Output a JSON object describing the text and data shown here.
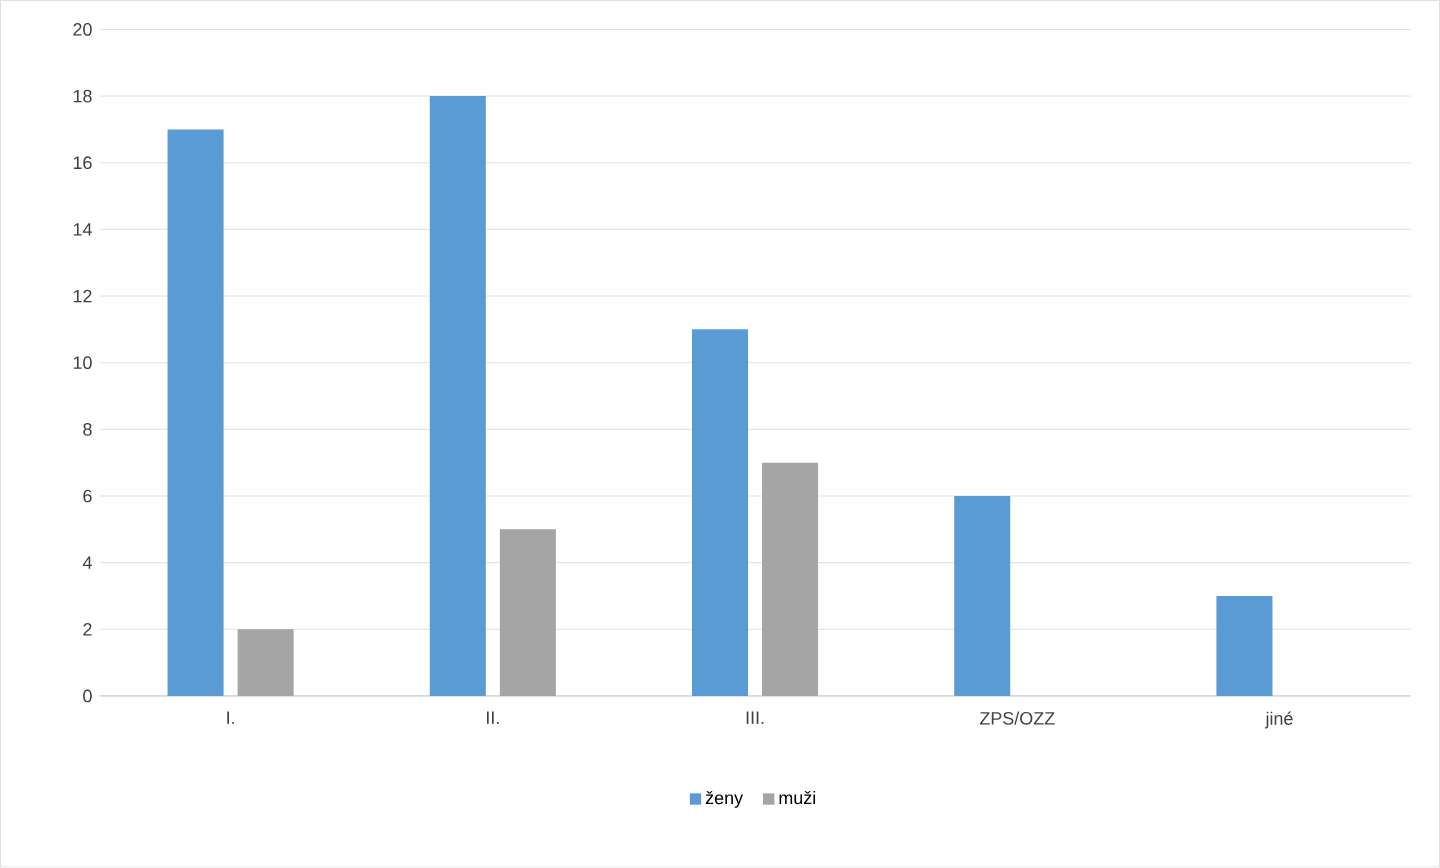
{
  "chart_data": {
    "type": "bar",
    "categories": [
      "I.",
      "II.",
      "III.",
      "ZPS/OZZ",
      "jiné"
    ],
    "series": [
      {
        "name": "ženy",
        "color": "#5b9bd5",
        "values": [
          17,
          18,
          11,
          6,
          3
        ]
      },
      {
        "name": "muži",
        "color": "#a5a5a5",
        "values": [
          2,
          5,
          7,
          0,
          0
        ]
      }
    ],
    "ylim": [
      0,
      20
    ],
    "yticks": [
      0,
      2,
      4,
      6,
      8,
      10,
      12,
      14,
      16,
      18,
      20
    ],
    "grid": "y",
    "legend": "bottom"
  }
}
